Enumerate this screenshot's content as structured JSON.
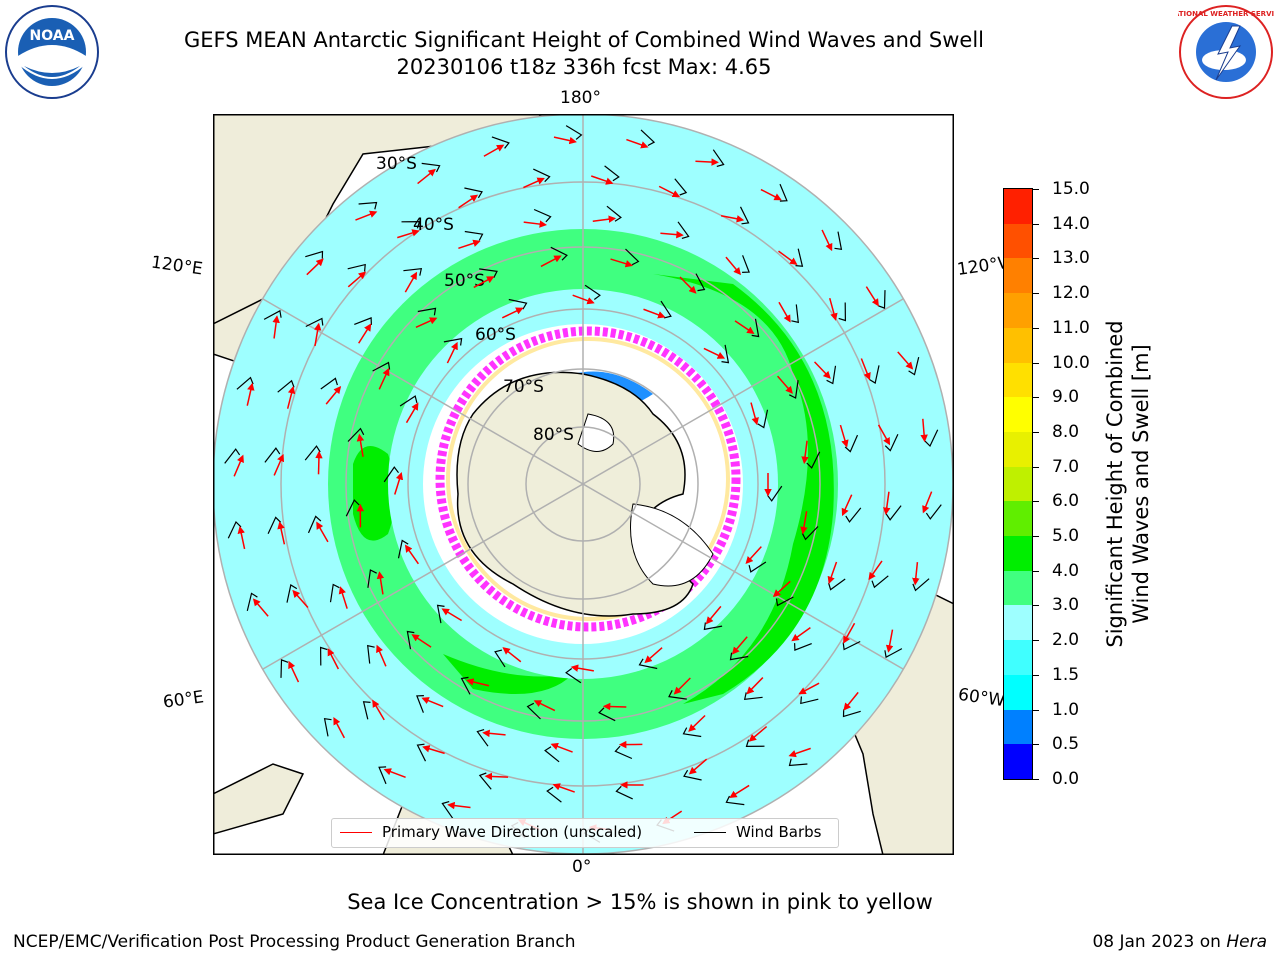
{
  "title": {
    "line1": "GEFS MEAN Antarctic Significant Height of Combined Wind Waves and Swell",
    "line2": "20230106 t18z 336h fcst   Max: 4.65"
  },
  "logos": {
    "left": "noaa-logo",
    "right": "nws-logo",
    "left_text": "NOAA",
    "right_text": "NATIONAL WEATHER SERVICE"
  },
  "map": {
    "projection": "south-polar-stereographic",
    "longitude_labels": {
      "top": "180°",
      "bottom": "0°",
      "upper_left": "120°E",
      "upper_right": "120°W",
      "lower_left": "60°E",
      "lower_right": "60°W"
    },
    "latitude_labels": [
      "30°S",
      "40°S",
      "50°S",
      "60°S",
      "70°S",
      "80°S"
    ],
    "colors": {
      "land": "#efedda",
      "antarctica": "#efeeda",
      "ice_shelf": "#ffffff",
      "grid": "#b0b0b0",
      "wave_arrow": "#ff0000",
      "wind_barb": "#000000"
    }
  },
  "legend": {
    "wave_label": "Primary Wave Direction (unscaled)",
    "wind_label": "Wind Barbs"
  },
  "colorbar": {
    "label_line1": "Significant Height of Combined",
    "label_line2": "Wind Waves and Swell [m]",
    "ticks": [
      "15.0",
      "14.0",
      "13.0",
      "12.0",
      "11.0",
      "10.0",
      "9.0",
      "8.0",
      "7.0",
      "6.0",
      "5.0",
      "4.0",
      "3.0",
      "2.0",
      "1.5",
      "1.0",
      "0.5",
      "0.0"
    ],
    "colors": [
      "#0000ff",
      "#0080ff",
      "#00ffff",
      "#40ffff",
      "#9effff",
      "#40ff80",
      "#00ee00",
      "#60ee00",
      "#bff000",
      "#e8f000",
      "#ffff00",
      "#ffe000",
      "#ffc000",
      "#ffa000",
      "#ff8000",
      "#ff5000",
      "#ff2000",
      "#ff0000"
    ]
  },
  "note": "Sea Ice Concentration > 15% is shown in pink to yellow",
  "footer": {
    "left": "NCEP/EMC/Verification Post Processing Product Generation Branch",
    "date": "08 Jan 2023 on ",
    "machine": "Hera"
  }
}
